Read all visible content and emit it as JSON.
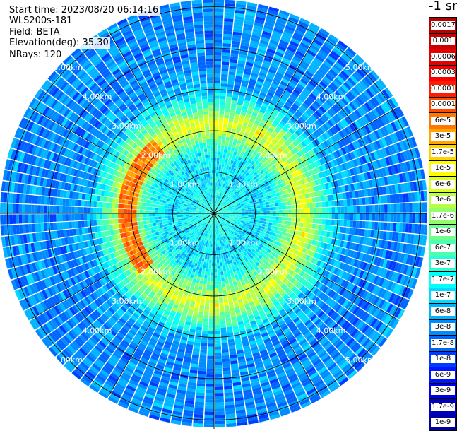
{
  "header": {
    "start_time": "Start time: 2023/08/20 06:14:16",
    "instrument": "WLS200s-181",
    "field": "Field: BETA",
    "elevation": "Elevation(deg): 35.30",
    "nrays": "NRays: 120"
  },
  "colorbar": {
    "unit": "-1 sr",
    "labels": [
      "0.0017",
      "0.001",
      "0.0006",
      "0.0003",
      "0.00017",
      "0.0001",
      "6e-5",
      "3e-5",
      "1.7e-5",
      "1e-5",
      "6e-6",
      "3e-6",
      "1.7e-6",
      "1e-6",
      "6e-7",
      "3e-7",
      "1.7e-7",
      "1e-7",
      "6e-8",
      "3e-8",
      "1.7e-8",
      "1e-8",
      "6e-9",
      "3e-9",
      "1.7e-9",
      "1e-9"
    ],
    "colors": [
      "#b80000",
      "#cc0000",
      "#e20000",
      "#f80000",
      "#ff1a00",
      "#ff4800",
      "#ff7600",
      "#ffa400",
      "#ffd200",
      "#fffe00",
      "#dcff22",
      "#b8ff46",
      "#94ff6a",
      "#70ff8e",
      "#4cffb2",
      "#28ffd6",
      "#04fefa",
      "#00dcff",
      "#00b4ff",
      "#008cff",
      "#0064ff",
      "#003cff",
      "#0014ff",
      "#0000e6",
      "#0000c0",
      "#00009a"
    ]
  },
  "chart_data": {
    "type": "heatmap",
    "projection": "polar PPI",
    "field": "BETA",
    "elevation_deg": 35.3,
    "nrays": 120,
    "range_rings_km": [
      1,
      2,
      3,
      4,
      5
    ],
    "ring_labels": [
      "1.00km",
      "2.00km",
      "3.00km",
      "4.00km",
      "5.00km"
    ],
    "max_range_km": 5.1,
    "azimuth_spokes_deg": [
      0,
      30,
      60,
      90,
      120,
      150,
      180,
      210,
      240,
      270,
      300,
      330
    ],
    "value_levels": [
      0.0017,
      0.001,
      0.0006,
      0.0003,
      0.00017,
      0.0001,
      6e-05,
      3e-05,
      1.7e-05,
      1e-05,
      6e-06,
      3e-06,
      1.7e-06,
      1e-06,
      6e-07,
      3e-07,
      1.7e-07,
      1e-07,
      6e-08,
      3e-08,
      1.7e-08,
      1e-08,
      6e-09,
      3e-09,
      1.7e-09,
      1e-09
    ],
    "range_profile_km": [
      0,
      0.5,
      1.0,
      1.5,
      1.8,
      2.0,
      2.2,
      2.5,
      3.0,
      3.5,
      4.0,
      4.5,
      5.0
    ],
    "range_profile_beta": [
      3e-07,
      1.7e-07,
      1e-07,
      1.7e-07,
      1e-06,
      3e-06,
      6e-06,
      1e-06,
      6e-08,
      3e-08,
      3e-08,
      3e-08,
      3e-08
    ],
    "high_feature": {
      "azimuth_deg_range": [
        230,
        320
      ],
      "range_km": [
        1.9,
        2.3
      ],
      "beta": 6e-05
    }
  }
}
